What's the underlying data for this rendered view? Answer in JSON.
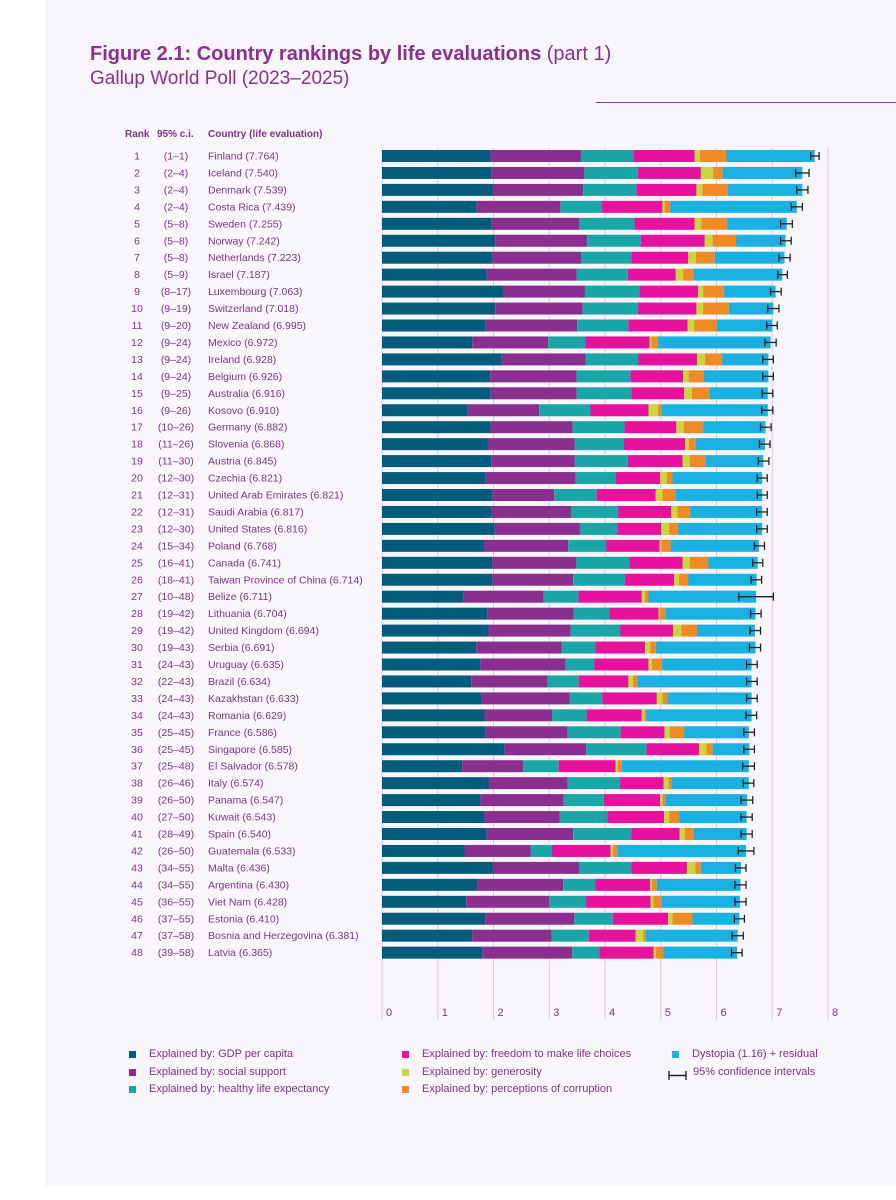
{
  "header": {
    "title_bold": "Figure 2.1: Country rankings by life evaluations",
    "title_light": " (part 1)",
    "subtitle": "Gallup World Poll (2023–2025)"
  },
  "columns": {
    "rank": "Rank",
    "ci": "95% c.i.",
    "country": "Country (life evaluation)"
  },
  "colors": {
    "gdp": "#045c7c",
    "social": "#8a2f8f",
    "health": "#1aa6a6",
    "freedom": "#e6119d",
    "generosity": "#c8d83a",
    "corruption": "#f08a24",
    "dystopia": "#1ab0e2",
    "text": "#7a3485",
    "axis": "#d9c9e0"
  },
  "legend": [
    {
      "key": "gdp",
      "label": "Explained by: GDP per capita"
    },
    {
      "key": "social",
      "label": "Explained by: social support"
    },
    {
      "key": "health",
      "label": "Explained by: healthy life expectancy"
    },
    {
      "key": "freedom",
      "label": "Explained by: freedom to make life choices"
    },
    {
      "key": "generosity",
      "label": "Explained by: generosity"
    },
    {
      "key": "corruption",
      "label": "Explained by: perceptions of corruption"
    },
    {
      "key": "dystopia",
      "label": "Dystopia (1.16) + residual"
    },
    {
      "key": "ci",
      "label": "95% confidence intervals"
    }
  ],
  "chart_data": {
    "type": "bar",
    "orientation": "horizontal",
    "stacked": true,
    "xlim": [
      0,
      8
    ],
    "xticks": [
      0,
      1,
      2,
      3,
      4,
      5,
      6,
      7,
      8
    ],
    "grid": true,
    "legend_position": "bottom",
    "component_order": [
      "gdp",
      "social",
      "health",
      "freedom",
      "generosity",
      "corruption",
      "dystopia"
    ],
    "rows": [
      {
        "rank": "1",
        "ci": "(1–1)",
        "label": "Finland (7.764)",
        "score": 7.764,
        "c": [
          1.95,
          1.62,
          0.94,
          1.1,
          0.09,
          0.48,
          1.58
        ],
        "lo": 7.69,
        "hi": 7.84
      },
      {
        "rank": "2",
        "ci": "(2–4)",
        "label": "Iceland (7.540)",
        "score": 7.54,
        "c": [
          1.97,
          1.66,
          0.96,
          1.13,
          0.22,
          0.17,
          1.43
        ],
        "lo": 7.42,
        "hi": 7.66
      },
      {
        "rank": "3",
        "ci": "(2–4)",
        "label": "Denmark (7.539)",
        "score": 7.539,
        "c": [
          1.99,
          1.62,
          0.95,
          1.08,
          0.11,
          0.45,
          1.34
        ],
        "lo": 7.44,
        "hi": 7.64
      },
      {
        "rank": "4",
        "ci": "(2–4)",
        "label": "Costa Rica (7.439)",
        "score": 7.439,
        "c": [
          1.7,
          1.5,
          0.74,
          1.09,
          0.04,
          0.1,
          2.27
        ],
        "lo": 7.34,
        "hi": 7.54
      },
      {
        "rank": "5",
        "ci": "(5–8)",
        "label": "Sweden (7.255)",
        "score": 7.255,
        "c": [
          1.97,
          1.57,
          0.99,
          1.08,
          0.12,
          0.46,
          1.07
        ],
        "lo": 7.15,
        "hi": 7.36
      },
      {
        "rank": "6",
        "ci": "(5–8)",
        "label": "Norway (7.242)",
        "score": 7.242,
        "c": [
          2.03,
          1.65,
          0.96,
          1.15,
          0.14,
          0.42,
          0.89
        ],
        "lo": 7.15,
        "hi": 7.34
      },
      {
        "rank": "7",
        "ci": "(5–8)",
        "label": "Netherlands (7.223)",
        "score": 7.223,
        "c": [
          1.98,
          1.59,
          0.9,
          1.02,
          0.14,
          0.34,
          1.25
        ],
        "lo": 7.12,
        "hi": 7.32
      },
      {
        "rank": "8",
        "ci": "(5–9)",
        "label": "Israel (7.187)",
        "score": 7.187,
        "c": [
          1.88,
          1.61,
          0.92,
          0.86,
          0.13,
          0.19,
          1.59
        ],
        "lo": 7.1,
        "hi": 7.27
      },
      {
        "rank": "9",
        "ci": "(8–17)",
        "label": "Luxembourg (7.063)",
        "score": 7.063,
        "c": [
          2.17,
          1.47,
          0.98,
          1.05,
          0.09,
          0.37,
          0.93
        ],
        "lo": 6.97,
        "hi": 7.16
      },
      {
        "rank": "10",
        "ci": "(9–19)",
        "label": "Switzerland (7.018)",
        "score": 7.018,
        "c": [
          2.03,
          1.57,
          0.99,
          1.05,
          0.12,
          0.46,
          0.8
        ],
        "lo": 6.92,
        "hi": 7.12
      },
      {
        "rank": "11",
        "ci": "(9–20)",
        "label": "New Zealand (6.995)",
        "score": 6.995,
        "c": [
          1.86,
          1.64,
          0.92,
          1.06,
          0.12,
          0.41,
          0.99
        ],
        "lo": 6.9,
        "hi": 7.09
      },
      {
        "rank": "12",
        "ci": "(9–24)",
        "label": "Mexico (6.972)",
        "score": 6.972,
        "c": [
          1.62,
          1.36,
          0.67,
          1.15,
          0.03,
          0.12,
          2.02
        ],
        "lo": 6.87,
        "hi": 7.07
      },
      {
        "rank": "13",
        "ci": "(9–24)",
        "label": "Ireland (6.928)",
        "score": 6.928,
        "c": [
          2.15,
          1.5,
          0.95,
          1.05,
          0.14,
          0.31,
          0.83
        ],
        "lo": 6.83,
        "hi": 7.02
      },
      {
        "rank": "14",
        "ci": "(9–24)",
        "label": "Belgium (6.926)",
        "score": 6.926,
        "c": [
          1.94,
          1.55,
          0.97,
          0.94,
          0.1,
          0.27,
          1.16
        ],
        "lo": 6.83,
        "hi": 7.02
      },
      {
        "rank": "15",
        "ci": "(9–25)",
        "label": "Australia (6.916)",
        "score": 6.916,
        "c": [
          1.95,
          1.54,
          0.98,
          0.95,
          0.14,
          0.31,
          1.05
        ],
        "lo": 6.82,
        "hi": 7.01
      },
      {
        "rank": "16",
        "ci": "(9–26)",
        "label": "Kosovo (6.910)",
        "score": 6.91,
        "c": [
          1.54,
          1.28,
          0.92,
          1.04,
          0.17,
          0.06,
          1.91
        ],
        "lo": 6.81,
        "hi": 7.01
      },
      {
        "rank": "17",
        "ci": "(10–26)",
        "label": "Germany (6.882)",
        "score": 6.882,
        "c": [
          1.95,
          1.47,
          0.93,
          0.93,
          0.13,
          0.35,
          1.12
        ],
        "lo": 6.79,
        "hi": 6.98
      },
      {
        "rank": "18",
        "ci": "(11–26)",
        "label": "Slovenia (6.868)",
        "score": 6.868,
        "c": [
          1.9,
          1.56,
          0.88,
          1.1,
          0.06,
          0.12,
          1.25
        ],
        "lo": 6.77,
        "hi": 6.96
      },
      {
        "rank": "19",
        "ci": "(11–30)",
        "label": "Austria (6.845)",
        "score": 6.845,
        "c": [
          1.96,
          1.5,
          0.95,
          0.98,
          0.13,
          0.28,
          1.04
        ],
        "lo": 6.75,
        "hi": 6.94
      },
      {
        "rank": "20",
        "ci": "(12–30)",
        "label": "Czechia (6.821)",
        "score": 6.821,
        "c": [
          1.86,
          1.61,
          0.72,
          0.8,
          0.12,
          0.1,
          1.61
        ],
        "lo": 6.73,
        "hi": 6.91
      },
      {
        "rank": "21",
        "ci": "(12–31)",
        "label": "United Arab Emirates (6.821)",
        "score": 6.821,
        "c": [
          1.98,
          1.11,
          0.76,
          1.06,
          0.12,
          0.23,
          1.56
        ],
        "lo": 6.73,
        "hi": 6.91
      },
      {
        "rank": "22",
        "ci": "(12–31)",
        "label": "Saudi Arabia (6.817)",
        "score": 6.817,
        "c": [
          1.97,
          1.42,
          0.84,
          0.96,
          0.11,
          0.23,
          1.29
        ],
        "lo": 6.72,
        "hi": 6.91
      },
      {
        "rank": "23",
        "ci": "(12–30)",
        "label": "United States (6.816)",
        "score": 6.816,
        "c": [
          2.02,
          1.53,
          0.67,
          0.79,
          0.14,
          0.16,
          1.51
        ],
        "lo": 6.72,
        "hi": 6.91
      },
      {
        "rank": "24",
        "ci": "(15–34)",
        "label": "Poland (6.768)",
        "score": 6.768,
        "c": [
          1.83,
          1.51,
          0.68,
          0.96,
          0.03,
          0.17,
          1.58
        ],
        "lo": 6.68,
        "hi": 6.86
      },
      {
        "rank": "25",
        "ci": "(16–41)",
        "label": "Canada (6.741)",
        "score": 6.741,
        "c": [
          1.98,
          1.5,
          0.96,
          0.95,
          0.13,
          0.33,
          0.89
        ],
        "lo": 6.65,
        "hi": 6.83
      },
      {
        "rank": "26",
        "ci": "(18–41)",
        "label": "Taiwan Province of China (6.714)",
        "score": 6.714,
        "c": [
          1.98,
          1.45,
          0.93,
          0.88,
          0.09,
          0.16,
          1.23
        ],
        "lo": 6.62,
        "hi": 6.81
      },
      {
        "rank": "27",
        "ci": "(10–48)",
        "label": "Belize (6.711)",
        "score": 6.711,
        "c": [
          1.46,
          1.44,
          0.62,
          1.14,
          0.06,
          0.06,
          1.93
        ],
        "lo": 6.4,
        "hi": 7.02
      },
      {
        "rank": "28",
        "ci": "(19–42)",
        "label": "Lithuania (6.704)",
        "score": 6.704,
        "c": [
          1.89,
          1.55,
          0.64,
          0.88,
          0.02,
          0.1,
          1.62
        ],
        "lo": 6.61,
        "hi": 6.8
      },
      {
        "rank": "29",
        "ci": "(19–42)",
        "label": "United Kingdom (6.694)",
        "score": 6.694,
        "c": [
          1.91,
          1.47,
          0.89,
          0.95,
          0.15,
          0.28,
          1.04
        ],
        "lo": 6.6,
        "hi": 6.79
      },
      {
        "rank": "30",
        "ci": "(19–43)",
        "label": "Serbia (6.691)",
        "score": 6.691,
        "c": [
          1.69,
          1.53,
          0.61,
          0.89,
          0.09,
          0.1,
          1.79
        ],
        "lo": 6.59,
        "hi": 6.79
      },
      {
        "rank": "31",
        "ci": "(24–43)",
        "label": "Uruguay (6.635)",
        "score": 6.635,
        "c": [
          1.76,
          1.53,
          0.52,
          0.97,
          0.06,
          0.18,
          1.61
        ],
        "lo": 6.54,
        "hi": 6.73
      },
      {
        "rank": "32",
        "ci": "(22–43)",
        "label": "Brazil (6.634)",
        "score": 6.634,
        "c": [
          1.6,
          1.37,
          0.56,
          0.89,
          0.08,
          0.08,
          2.05
        ],
        "lo": 6.54,
        "hi": 6.73
      },
      {
        "rank": "33",
        "ci": "(24–43)",
        "label": "Kazakhstan (6.633)",
        "score": 6.633,
        "c": [
          1.79,
          1.58,
          0.58,
          0.98,
          0.1,
          0.09,
          1.51
        ],
        "lo": 6.54,
        "hi": 6.73
      },
      {
        "rank": "34",
        "ci": "(24–43)",
        "label": "Romania (6.629)",
        "score": 6.629,
        "c": [
          1.84,
          1.21,
          0.62,
          0.99,
          0.05,
          0.03,
          1.89
        ],
        "lo": 6.53,
        "hi": 6.72
      },
      {
        "rank": "35",
        "ci": "(25–45)",
        "label": "France (6.586)",
        "score": 6.586,
        "c": [
          1.86,
          1.47,
          0.95,
          0.79,
          0.09,
          0.26,
          1.16
        ],
        "lo": 6.49,
        "hi": 6.68
      },
      {
        "rank": "36",
        "ci": "(25–45)",
        "label": "Singapore (6.585)",
        "score": 6.585,
        "c": [
          2.2,
          1.46,
          1.08,
          0.95,
          0.13,
          0.11,
          0.66
        ],
        "lo": 6.49,
        "hi": 6.68
      },
      {
        "rank": "37",
        "ci": "(25–48)",
        "label": "El Salvador (6.578)",
        "score": 6.578,
        "c": [
          1.44,
          1.09,
          0.64,
          1.02,
          0.04,
          0.07,
          2.28
        ],
        "lo": 6.47,
        "hi": 6.68
      },
      {
        "rank": "38",
        "ci": "(26–46)",
        "label": "Italy (6.574)",
        "score": 6.574,
        "c": [
          1.92,
          1.41,
          0.94,
          0.78,
          0.09,
          0.05,
          1.39
        ],
        "lo": 6.48,
        "hi": 6.67
      },
      {
        "rank": "39",
        "ci": "(26–50)",
        "label": "Panama (6.547)",
        "score": 6.547,
        "c": [
          1.77,
          1.49,
          0.72,
          1.01,
          0.04,
          0.05,
          1.47
        ],
        "lo": 6.44,
        "hi": 6.65
      },
      {
        "rank": "40",
        "ci": "(27–50)",
        "label": "Kuwait (6.543)",
        "score": 6.543,
        "c": [
          1.84,
          1.35,
          0.85,
          1.02,
          0.09,
          0.18,
          1.21
        ],
        "lo": 6.44,
        "hi": 6.64
      },
      {
        "rank": "41",
        "ci": "(28–49)",
        "label": "Spain (6.540)",
        "score": 6.54,
        "c": [
          1.88,
          1.55,
          1.04,
          0.87,
          0.09,
          0.16,
          0.95
        ],
        "lo": 6.44,
        "hi": 6.64
      },
      {
        "rank": "42",
        "ci": "(26–50)",
        "label": "Guatemala (6.533)",
        "score": 6.533,
        "c": [
          1.48,
          1.19,
          0.38,
          1.05,
          0.04,
          0.08,
          2.31
        ],
        "lo": 6.39,
        "hi": 6.67
      },
      {
        "rank": "43",
        "ci": "(34–55)",
        "label": "Malta (6.436)",
        "score": 6.436,
        "c": [
          1.99,
          1.55,
          0.93,
          1.0,
          0.15,
          0.1,
          0.72
        ],
        "lo": 6.34,
        "hi": 6.53
      },
      {
        "rank": "44",
        "ci": "(34–55)",
        "label": "Argentina (6.430)",
        "score": 6.43,
        "c": [
          1.71,
          1.54,
          0.58,
          0.98,
          0.03,
          0.09,
          1.5
        ],
        "lo": 6.33,
        "hi": 6.53
      },
      {
        "rank": "45",
        "ci": "(36–55)",
        "label": "Viet Nam (6.428)",
        "score": 6.428,
        "c": [
          1.51,
          1.49,
          0.66,
          1.16,
          0.05,
          0.14,
          1.41
        ],
        "lo": 6.33,
        "hi": 6.53
      },
      {
        "rank": "46",
        "ci": "(37–55)",
        "label": "Estonia (6.410)",
        "score": 6.41,
        "c": [
          1.85,
          1.6,
          0.69,
          0.99,
          0.08,
          0.36,
          0.84
        ],
        "lo": 6.32,
        "hi": 6.5
      },
      {
        "rank": "47",
        "ci": "(37–58)",
        "label": "Bosnia and Herzegovina (6.381)",
        "score": 6.381,
        "c": [
          1.62,
          1.42,
          0.67,
          0.84,
          0.14,
          0.04,
          1.65
        ],
        "lo": 6.28,
        "hi": 6.48
      },
      {
        "rank": "48",
        "ci": "(39–58)",
        "label": "Latvia (6.365)",
        "score": 6.365,
        "c": [
          1.8,
          1.61,
          0.49,
          0.97,
          0.04,
          0.14,
          1.32
        ],
        "lo": 6.27,
        "hi": 6.46
      }
    ]
  }
}
